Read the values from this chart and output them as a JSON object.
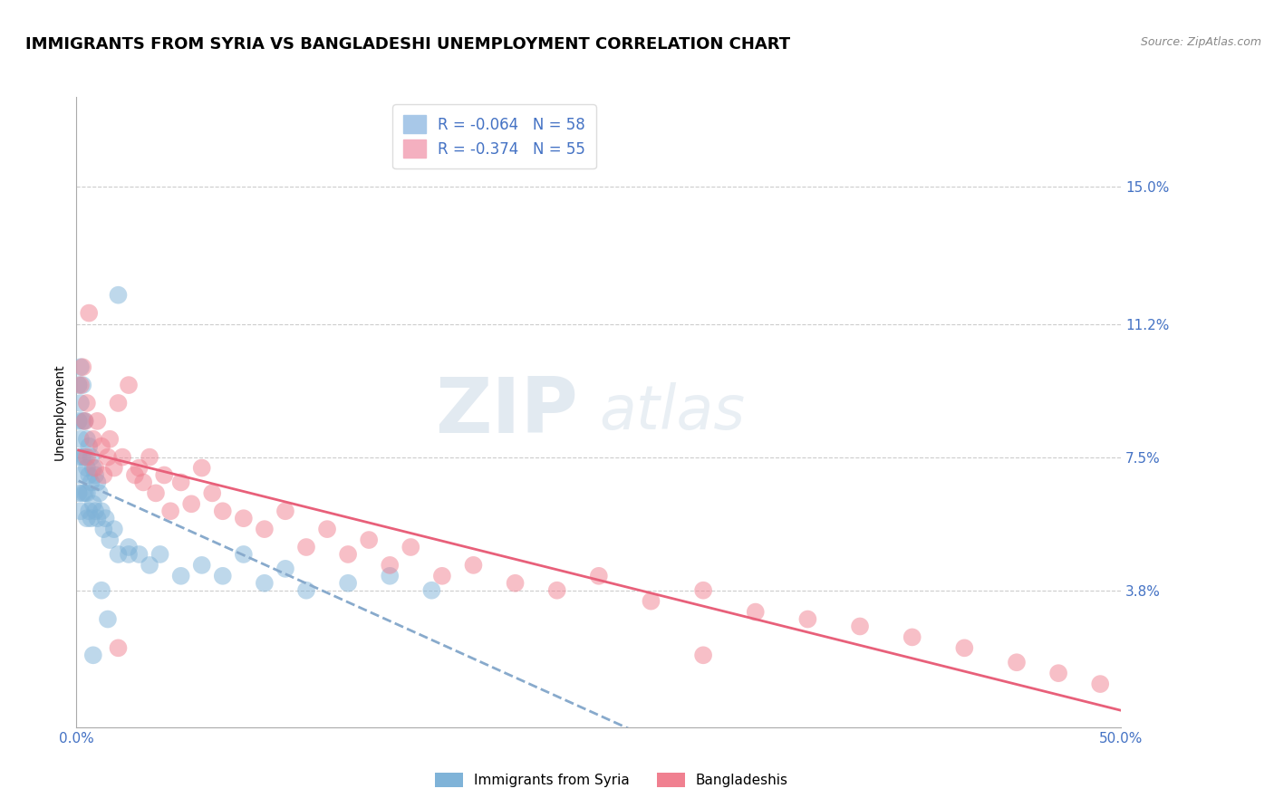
{
  "title": "IMMIGRANTS FROM SYRIA VS BANGLADESHI UNEMPLOYMENT CORRELATION CHART",
  "source": "Source: ZipAtlas.com",
  "ylabel": "Unemployment",
  "xlim": [
    0.0,
    0.5
  ],
  "ylim": [
    0.0,
    0.175
  ],
  "yticks": [
    0.0,
    0.038,
    0.075,
    0.112,
    0.15
  ],
  "ytick_labels": [
    "",
    "3.8%",
    "7.5%",
    "11.2%",
    "15.0%"
  ],
  "xtick_labels": [
    "0.0%",
    "50.0%"
  ],
  "xticks": [
    0.0,
    0.5
  ],
  "watermark_zip": "ZIP",
  "watermark_atlas": "atlas",
  "syria_color": "#7fb3d8",
  "bangladesh_color": "#f08090",
  "title_fontsize": 13,
  "axis_label_fontsize": 10,
  "tick_fontsize": 11,
  "syria_points_x": [
    0.001,
    0.001,
    0.001,
    0.001,
    0.002,
    0.002,
    0.002,
    0.002,
    0.002,
    0.003,
    0.003,
    0.003,
    0.003,
    0.004,
    0.004,
    0.004,
    0.005,
    0.005,
    0.005,
    0.005,
    0.006,
    0.006,
    0.006,
    0.007,
    0.007,
    0.007,
    0.008,
    0.008,
    0.009,
    0.009,
    0.01,
    0.01,
    0.011,
    0.012,
    0.013,
    0.014,
    0.016,
    0.018,
    0.02,
    0.025,
    0.03,
    0.035,
    0.04,
    0.05,
    0.06,
    0.07,
    0.08,
    0.09,
    0.1,
    0.11,
    0.13,
    0.15,
    0.17,
    0.02,
    0.025,
    0.012,
    0.015,
    0.008
  ],
  "syria_points_y": [
    0.095,
    0.085,
    0.075,
    0.065,
    0.1,
    0.09,
    0.08,
    0.07,
    0.06,
    0.095,
    0.085,
    0.075,
    0.065,
    0.085,
    0.075,
    0.065,
    0.08,
    0.072,
    0.065,
    0.058,
    0.078,
    0.07,
    0.06,
    0.075,
    0.068,
    0.058,
    0.072,
    0.062,
    0.07,
    0.06,
    0.068,
    0.058,
    0.065,
    0.06,
    0.055,
    0.058,
    0.052,
    0.055,
    0.048,
    0.05,
    0.048,
    0.045,
    0.048,
    0.042,
    0.045,
    0.042,
    0.048,
    0.04,
    0.044,
    0.038,
    0.04,
    0.042,
    0.038,
    0.12,
    0.048,
    0.038,
    0.03,
    0.02
  ],
  "bangladesh_points_x": [
    0.002,
    0.003,
    0.004,
    0.005,
    0.005,
    0.006,
    0.008,
    0.009,
    0.01,
    0.012,
    0.013,
    0.015,
    0.016,
    0.018,
    0.02,
    0.022,
    0.025,
    0.028,
    0.03,
    0.032,
    0.035,
    0.038,
    0.042,
    0.045,
    0.05,
    0.055,
    0.06,
    0.065,
    0.07,
    0.08,
    0.09,
    0.1,
    0.11,
    0.12,
    0.13,
    0.14,
    0.15,
    0.16,
    0.175,
    0.19,
    0.21,
    0.23,
    0.25,
    0.275,
    0.3,
    0.325,
    0.35,
    0.375,
    0.4,
    0.425,
    0.45,
    0.47,
    0.49,
    0.3,
    0.02
  ],
  "bangladesh_points_y": [
    0.095,
    0.1,
    0.085,
    0.09,
    0.075,
    0.115,
    0.08,
    0.072,
    0.085,
    0.078,
    0.07,
    0.075,
    0.08,
    0.072,
    0.09,
    0.075,
    0.095,
    0.07,
    0.072,
    0.068,
    0.075,
    0.065,
    0.07,
    0.06,
    0.068,
    0.062,
    0.072,
    0.065,
    0.06,
    0.058,
    0.055,
    0.06,
    0.05,
    0.055,
    0.048,
    0.052,
    0.045,
    0.05,
    0.042,
    0.045,
    0.04,
    0.038,
    0.042,
    0.035,
    0.038,
    0.032,
    0.03,
    0.028,
    0.025,
    0.022,
    0.018,
    0.015,
    0.012,
    0.02,
    0.022
  ]
}
